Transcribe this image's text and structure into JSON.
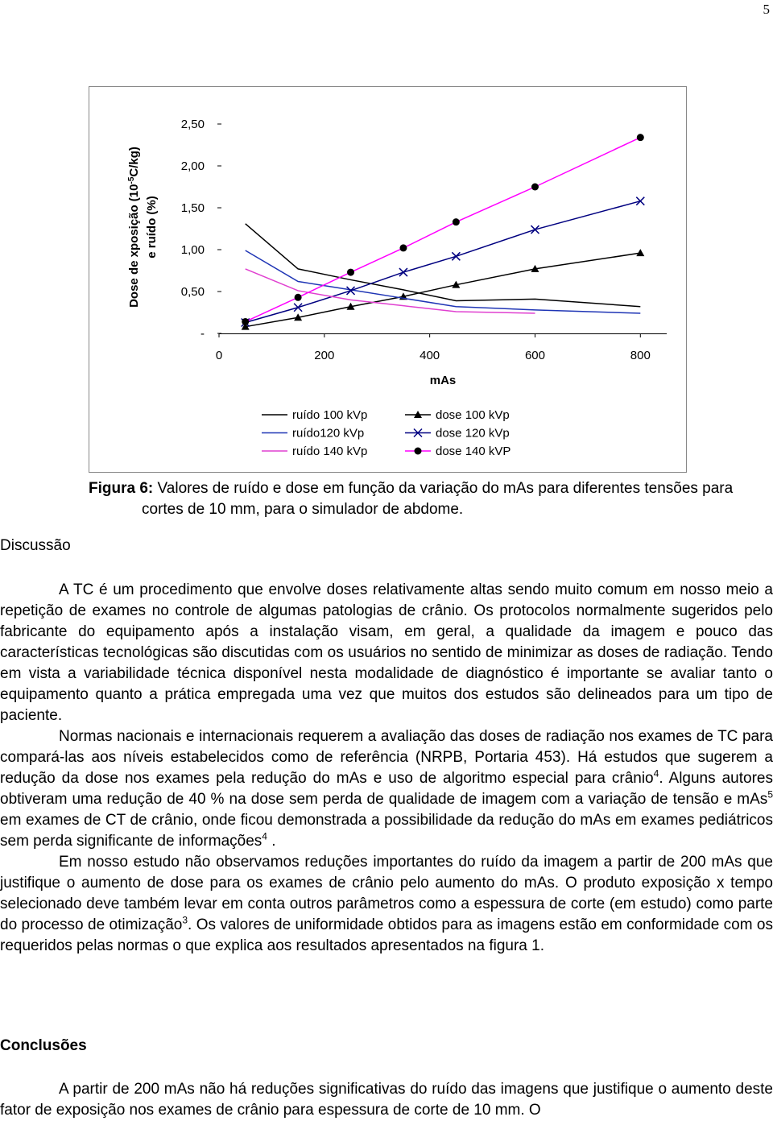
{
  "page_number": "5",
  "chart_data": {
    "type": "line",
    "ylabel": {
      "parts": [
        "Dose de xposição (10",
        "-5",
        "C/kg)"
      ],
      "line2": "e ruído (%)"
    },
    "xlabel": "mAs",
    "x": [
      50,
      150,
      250,
      350,
      450,
      600,
      800
    ],
    "xlim": [
      0,
      850
    ],
    "xticks": [
      0,
      200,
      400,
      600,
      800
    ],
    "ylim": [
      0,
      2.5
    ],
    "yticks": [
      {
        "value": 0,
        "label": "-"
      },
      {
        "value": 0.5,
        "label": "0,50"
      },
      {
        "value": 1,
        "label": "1,00"
      },
      {
        "value": 1.5,
        "label": "1,50"
      },
      {
        "value": 2,
        "label": "2,00"
      },
      {
        "value": 2.5,
        "label": "2,50"
      }
    ],
    "series": [
      {
        "name": "ruído 100 kVp",
        "color": "#000000",
        "values": [
          1.31,
          0.77,
          0.64,
          0.52,
          0.39,
          0.41,
          0.32
        ]
      },
      {
        "name": "dose 100 kVp",
        "color": "#000000",
        "marker": "triangle",
        "marker_color": "#000000",
        "values": [
          0.08,
          0.19,
          0.32,
          0.44,
          0.58,
          0.77,
          0.96
        ]
      },
      {
        "name": "ruído120 kVp",
        "color": "#1f35b5",
        "values": [
          0.99,
          0.62,
          0.52,
          0.42,
          0.32,
          0.28,
          0.24
        ]
      },
      {
        "name": "dose 120 kVp",
        "color": "#000080",
        "marker": "x",
        "marker_color": "#000080",
        "values": [
          0.13,
          0.31,
          0.51,
          0.73,
          0.92,
          1.24,
          1.58
        ]
      },
      {
        "name": "ruído 140 kVp",
        "color": "#e040d0",
        "values": [
          0.77,
          0.51,
          0.4,
          0.33,
          0.26,
          0.24,
          null
        ]
      },
      {
        "name": "dose 140 kVP",
        "color": "#ff00ff",
        "marker": "circle",
        "marker_color": "#000000",
        "values": [
          0.14,
          0.43,
          0.73,
          1.02,
          1.33,
          1.75,
          2.34
        ]
      }
    ]
  },
  "caption": {
    "label": "Figura 6:",
    "text": " Valores de ruído e dose em função da variação do mAs para diferentes tensões para cortes de 10 mm, para o simulador de abdome."
  },
  "discussion": {
    "heading": "Discussão",
    "paragraphs": [
      [
        "A TC é um procedimento que envolve doses relativamente altas sendo muito comum em nosso meio a repetição de exames no controle de algumas patologias de crânio. Os protocolos normalmente sugeridos pelo fabricante do equipamento após a instalação visam, em geral, a qualidade da imagem  e pouco das características tecnológicas são discutidas com os usuários no sentido de minimizar as doses de radiação. Tendo em vista a variabilidade técnica disponível nesta modalidade de diagnóstico é importante se avaliar tanto o equipamento quanto a prática empregada uma vez que  muitos dos estudos são delineados para um tipo de paciente."
      ],
      [
        "Normas nacionais e internacionais requerem a avaliação das doses de radiação nos exames de TC  para compará-las aos níveis estabelecidos como de referência (NRPB, Portaria 453). Há estudos que sugerem a redução da dose nos exames pela redução do mAs e uso de algoritmo especial para crânio",
        {
          "sup": "4"
        },
        ". Alguns autores obtiveram uma redução de 40 %   na dose sem perda de qualidade de imagem  com a variação de tensão e mAs",
        {
          "sup": "5"
        },
        " em exames de CT de crânio, onde ficou demonstrada a possibilidade da redução do mAs em exames pediátricos sem perda significante de informações",
        {
          "sup": "4"
        },
        " ."
      ],
      [
        "Em nosso estudo não observamos reduções importantes do ruído da imagem a partir de 200 mAs que justifique o aumento de dose para os exames de crânio pelo aumento do mAs. O produto exposição x tempo selecionado deve também levar em conta outros parâmetros como a espessura de corte (em estudo) como parte do processo de otimização",
        {
          "sup": "3"
        },
        ". Os valores de uniformidade obtidos para as imagens estão em conformidade com os requeridos pelas normas o que explica aos resultados apresentados na figura 1."
      ]
    ]
  },
  "conclusions": {
    "heading": "Conclusões",
    "paragraphs": [
      [
        "A partir de 200 mAs não há reduções significativas do ruído das imagens que justifique o aumento deste fator de exposição nos exames de crânio para espessura de corte de 10 mm. O"
      ]
    ]
  }
}
